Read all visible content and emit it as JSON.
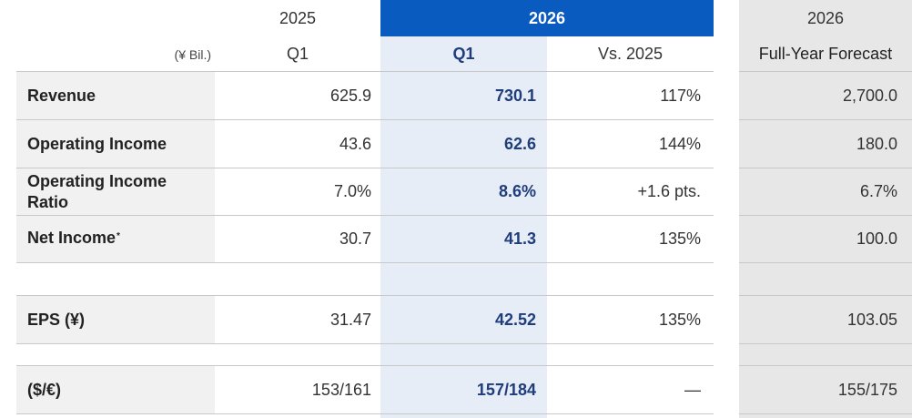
{
  "header": {
    "year_2025": "2025",
    "year_2026": "2026",
    "year_2026_forecast": "2026",
    "unit": "(¥ Bil.)",
    "col_q1_2025": "Q1",
    "col_q1_2026": "Q1",
    "col_vs": "Vs. 2025",
    "col_forecast": "Full-Year Forecast"
  },
  "rows": [
    {
      "label": "Revenue",
      "q1_2025": "625.9",
      "q1_2026": "730.1",
      "vs": "117%",
      "forecast": "2,700.0"
    },
    {
      "label": "Operating Income",
      "q1_2025": "43.6",
      "q1_2026": "62.6",
      "vs": "144%",
      "forecast": "180.0"
    },
    {
      "label_line1": "Operating Income",
      "label_line2": "Ratio",
      "q1_2025": "7.0%",
      "q1_2026": "8.6%",
      "vs": "+1.6 pts.",
      "forecast": "6.7%"
    },
    {
      "label": "Net Income",
      "label_sup": "*",
      "q1_2025": "30.7",
      "q1_2026": "41.3",
      "vs": "135%",
      "forecast": "100.0"
    },
    {
      "label": "EPS (¥)",
      "q1_2025": "31.47",
      "q1_2026": "42.52",
      "vs": "135%",
      "forecast": "103.05"
    },
    {
      "label": "($/€)",
      "q1_2025": "153/161",
      "q1_2026": "157/184",
      "vs": "—",
      "forecast": "155/175"
    }
  ],
  "colors": {
    "header_blue": "#0a5bbf",
    "light_blue": "#e6edf7",
    "label_gray": "#f1f1f1",
    "forecast_gray": "#e7e7e7",
    "value_blue": "#1f3d7a"
  }
}
